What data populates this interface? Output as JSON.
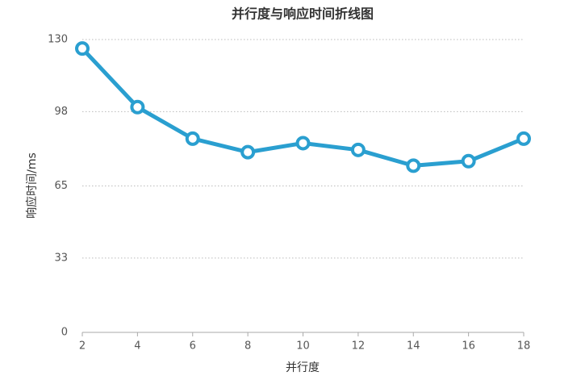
{
  "chart_data": {
    "type": "line",
    "title": "并行度与响应时间折线图",
    "x_label": "并行度",
    "y_label": "响应时间/ms",
    "x": [
      2,
      4,
      6,
      8,
      10,
      12,
      14,
      16,
      18
    ],
    "series": [
      {
        "name": "响应时间",
        "color": "#2a9fd0",
        "values": [
          126,
          100,
          86,
          80,
          84,
          81,
          74,
          76,
          86
        ]
      }
    ],
    "xlim": [
      2,
      18
    ],
    "xticks": [
      2,
      4,
      6,
      8,
      10,
      12,
      14,
      16,
      18
    ],
    "ylim": [
      0,
      130
    ],
    "yticks": [
      0,
      33,
      65,
      98,
      130
    ],
    "grid": true
  }
}
